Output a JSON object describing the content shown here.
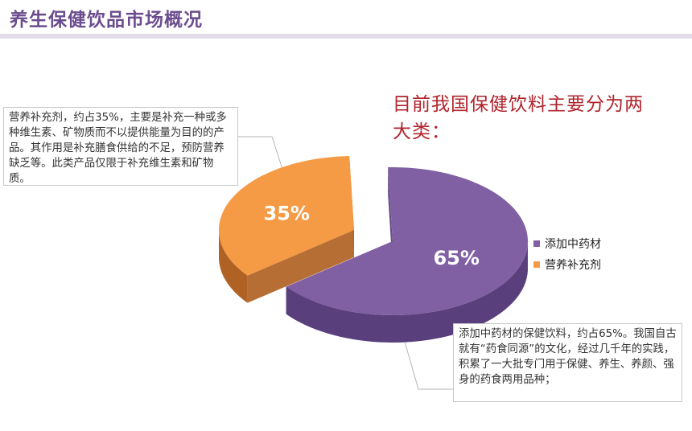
{
  "page": {
    "title": "养生保健饮品市场概况",
    "headline": "目前我国保健饮料主要分为两大类："
  },
  "callouts": {
    "left": "营养补充剂，约占35%，主要是补充一种或多种维生素、矿物质而不以提供能量为目的的产品。其作用是补充膳食供给的不足，预防营养缺乏等。此类产品仅限于补充维生素和矿物质。",
    "right": "添加中药材的保健饮料，约占65%。我国自古就有“药食同源”的文化，经过几千年的实践，积累了一大批专门用于保健、养生、养颜、强身的药食两用品种；"
  },
  "colors": {
    "accent_title": "#6b4d8e",
    "headline": "#b0242c",
    "purple_top": "#8060a3",
    "purple_side": "#5a3f7d",
    "orange_top": "#f59a45",
    "orange_side": "#b06224"
  },
  "chart_data": {
    "type": "pie",
    "style": "3d-exploded",
    "slices": [
      {
        "label": "添加中药材",
        "value": 65,
        "display": "65%",
        "color": "#8060a3"
      },
      {
        "label": "营养补充剂",
        "value": 35,
        "display": "35%",
        "color": "#f59a45"
      }
    ],
    "legend": {
      "position": "right",
      "entries": [
        "添加中药材",
        "营养补充剂"
      ]
    }
  }
}
